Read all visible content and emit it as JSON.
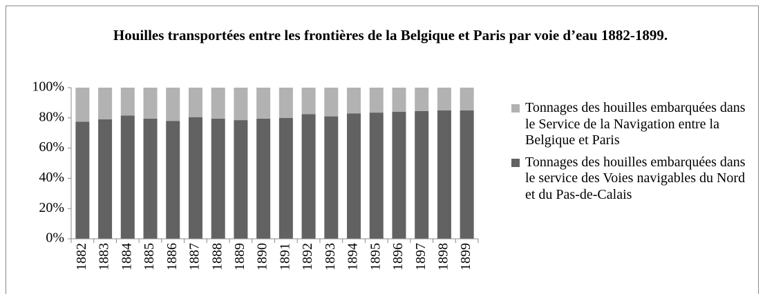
{
  "chart_data": {
    "type": "stacked_bar",
    "title": "Houilles transportées entre les frontières de la Belgique et Paris par voie d’eau 1882-1899.",
    "categories": [
      "1882",
      "1883",
      "1884",
      "1885",
      "1886",
      "1887",
      "1888",
      "1889",
      "1890",
      "1891",
      "1892",
      "1893",
      "1894",
      "1895",
      "1896",
      "1897",
      "1898",
      "1899"
    ],
    "series": [
      {
        "name": "Tonnages des houilles embarquées dans le Service de la Navigation entre la Belgique et Paris",
        "color": "#b2b2b2",
        "values": [
          22.5,
          21,
          18.5,
          20.5,
          22,
          19.5,
          20.5,
          21.5,
          20.5,
          20,
          17.5,
          19,
          17,
          16.5,
          16,
          15.5,
          15,
          15
        ]
      },
      {
        "name": "Tonnages des houilles embarquées dans le service des Voies navigables du Nord et du Pas-de-Calais",
        "color": "#626262",
        "values": [
          77.5,
          79,
          81.5,
          79.5,
          78,
          80.5,
          79.5,
          78.5,
          79.5,
          80,
          82.5,
          81,
          83,
          83.5,
          84,
          84.5,
          85,
          85
        ]
      }
    ],
    "ylim": [
      0,
      100
    ],
    "yticks": [
      {
        "value": 0,
        "label": "0%"
      },
      {
        "value": 20,
        "label": "20%"
      },
      {
        "value": 40,
        "label": "40%"
      },
      {
        "value": 60,
        "label": "60%"
      },
      {
        "value": 80,
        "label": "80%"
      },
      {
        "value": 100,
        "label": "100%"
      }
    ],
    "legend": "right"
  }
}
